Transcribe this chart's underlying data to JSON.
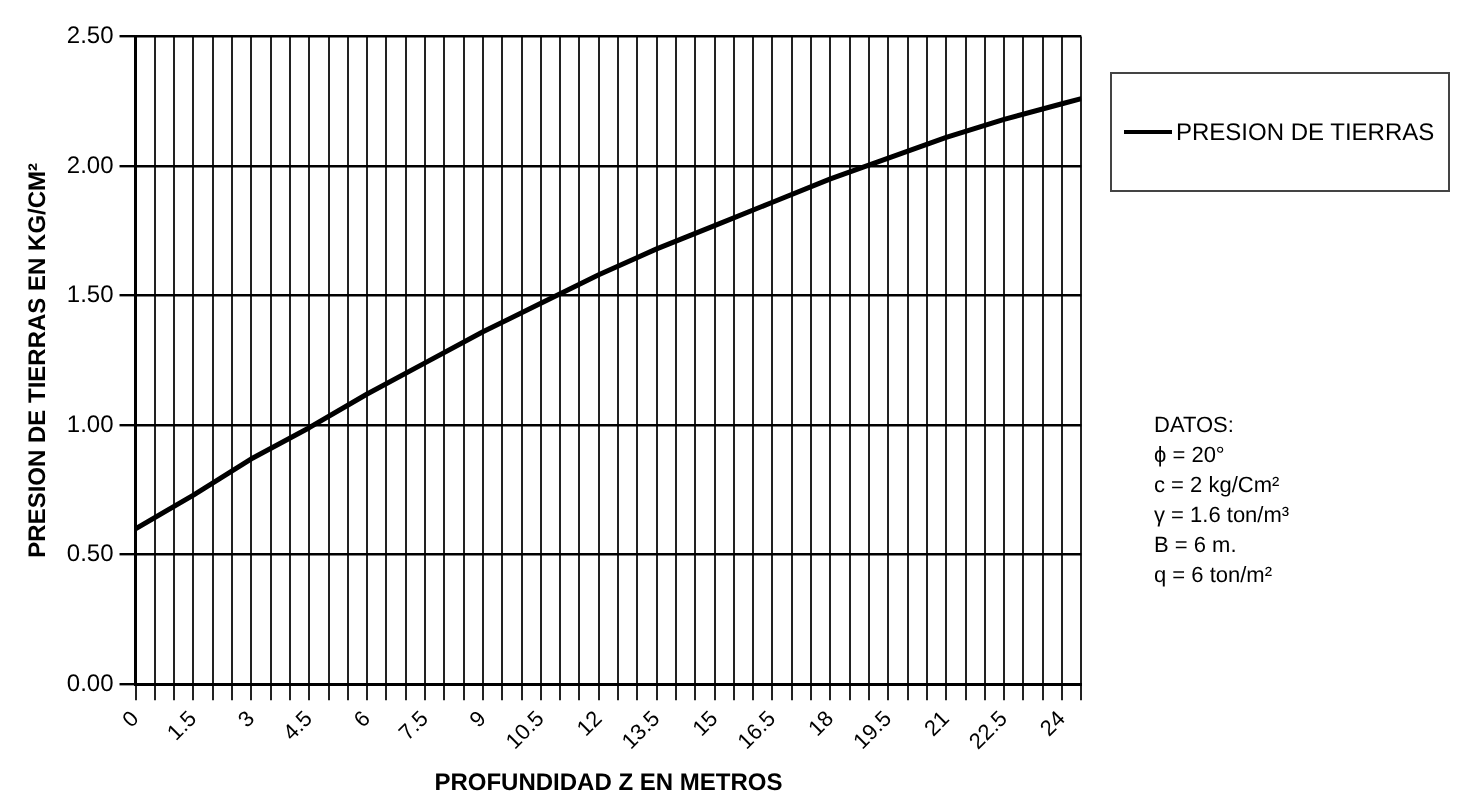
{
  "chart_data": {
    "type": "line",
    "xlabel": "PROFUNDIDAD Z EN METROS",
    "ylabel": "PRESION DE TIERRAS EN KG/CM²",
    "x": [
      0,
      1.5,
      3,
      4.5,
      6,
      7.5,
      9,
      10.5,
      12,
      13.5,
      15,
      16.5,
      18,
      19.5,
      21,
      22.5,
      24,
      24.5
    ],
    "series": [
      {
        "name": "PRESION DE TIERRAS",
        "color": "#000000",
        "values": [
          0.6,
          0.73,
          0.87,
          0.99,
          1.12,
          1.24,
          1.36,
          1.47,
          1.58,
          1.68,
          1.77,
          1.86,
          1.95,
          2.03,
          2.11,
          2.18,
          2.24,
          2.26
        ]
      }
    ],
    "xlim": [
      0,
      24.5
    ],
    "xticks": [
      0,
      {
        "value": 0.5,
        "label": null
      },
      {
        "value": 1,
        "label": null
      },
      1.5,
      {
        "value": 2,
        "label": null
      },
      {
        "value": 2.5,
        "label": null
      },
      3,
      {
        "value": 3.5,
        "label": null
      },
      {
        "value": 4,
        "label": null
      },
      4.5,
      {
        "value": 5,
        "label": null
      },
      {
        "value": 5.5,
        "label": null
      },
      6,
      {
        "value": 6.5,
        "label": null
      },
      {
        "value": 7,
        "label": null
      },
      7.5,
      {
        "value": 8,
        "label": null
      },
      {
        "value": 8.5,
        "label": null
      },
      9,
      {
        "value": 9.5,
        "label": null
      },
      {
        "value": 10,
        "label": null
      },
      10.5,
      {
        "value": 11,
        "label": null
      },
      {
        "value": 11.5,
        "label": null
      },
      12,
      {
        "value": 12.5,
        "label": null
      },
      {
        "value": 13,
        "label": null
      },
      13.5,
      {
        "value": 14,
        "label": null
      },
      {
        "value": 14.5,
        "label": null
      },
      15,
      {
        "value": 15.5,
        "label": null
      },
      {
        "value": 16,
        "label": null
      },
      16.5,
      {
        "value": 17,
        "label": null
      },
      {
        "value": 17.5,
        "label": null
      },
      18,
      {
        "value": 18.5,
        "label": null
      },
      {
        "value": 19,
        "label": null
      },
      19.5,
      {
        "value": 20,
        "label": null
      },
      {
        "value": 20.5,
        "label": null
      },
      21,
      {
        "value": 21.5,
        "label": null
      },
      {
        "value": 22,
        "label": null
      },
      22.5,
      {
        "value": 23,
        "label": null
      },
      {
        "value": 23.5,
        "label": null
      },
      24,
      {
        "value": 24.5,
        "label": null
      }
    ],
    "ylim": [
      0,
      2.5
    ],
    "yticks": [
      {
        "value": 0,
        "label": "0.00"
      },
      {
        "value": 0.5,
        "label": "0.50"
      },
      {
        "value": 1,
        "label": "1.00"
      },
      {
        "value": 1.5,
        "label": "1.50"
      },
      {
        "value": 2,
        "label": "2.00"
      },
      {
        "value": 2.5,
        "label": "2.50"
      }
    ],
    "grid": true,
    "legend": "right",
    "marker": "none",
    "line_style": "solid",
    "annotations": [
      "DATOS:",
      "ϕ = 20°",
      "c = 2 kg/Cm²",
      "γ = 1.6 ton/m³",
      "B = 6 m.",
      "q = 6 ton/m²"
    ]
  }
}
